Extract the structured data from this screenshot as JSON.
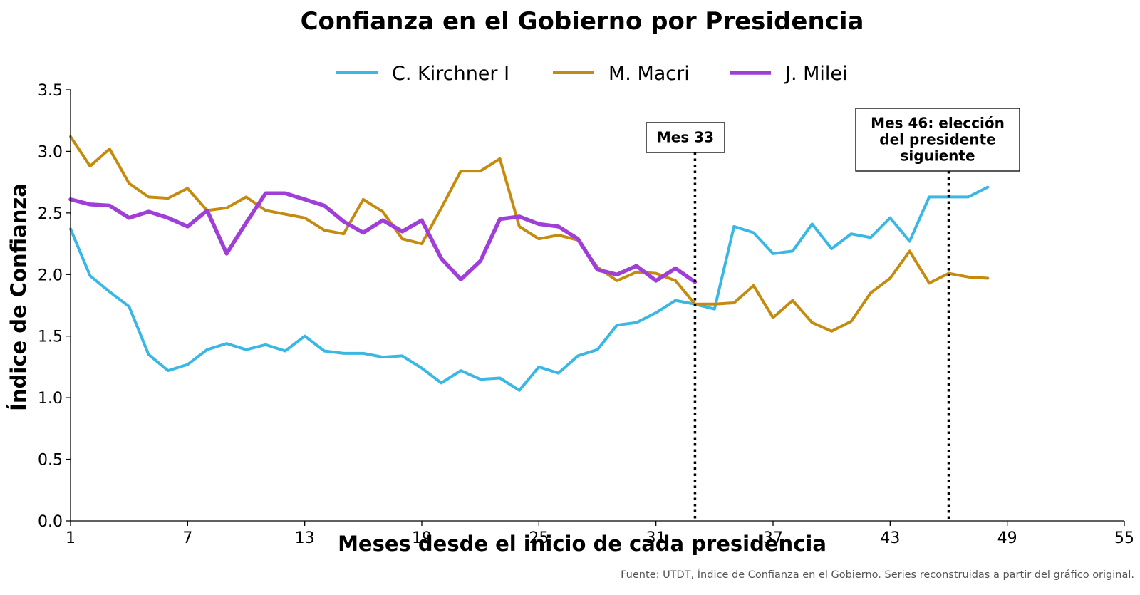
{
  "chart_data": {
    "type": "line",
    "title": "Confianza en el Gobierno por Presidencia",
    "xlabel": "Meses desde el inicio de cada presidencia",
    "ylabel": "Índice de Confianza",
    "xlim": [
      1,
      55
    ],
    "ylim": [
      0,
      3.5
    ],
    "xticks": [
      1,
      7,
      13,
      19,
      25,
      31,
      37,
      43,
      49,
      55
    ],
    "yticks": [
      0.0,
      0.5,
      1.0,
      1.5,
      2.0,
      2.5,
      3.0,
      3.5
    ],
    "xtick_labels": [
      "1",
      "7",
      "13",
      "19",
      "25",
      "31",
      "37",
      "43",
      "49",
      "55"
    ],
    "ytick_labels": [
      "0.0",
      "0.5",
      "1.0",
      "1.5",
      "2.0",
      "2.5",
      "3.0",
      "3.5"
    ],
    "grid": false,
    "legend_position": "top-center",
    "series": [
      {
        "name": "C. Kirchner I",
        "color": "#3bb7e3",
        "x": [
          1,
          2,
          3,
          4,
          5,
          6,
          7,
          8,
          9,
          10,
          11,
          12,
          13,
          14,
          15,
          16,
          17,
          18,
          19,
          20,
          21,
          22,
          23,
          24,
          25,
          26,
          27,
          28,
          29,
          30,
          31,
          32,
          33,
          34,
          35,
          36,
          37,
          38,
          39,
          40,
          41,
          42,
          43,
          44,
          45,
          46,
          47,
          48
        ],
        "values": [
          2.37,
          1.99,
          1.86,
          1.74,
          1.35,
          1.22,
          1.27,
          1.39,
          1.44,
          1.39,
          1.43,
          1.38,
          1.5,
          1.38,
          1.36,
          1.36,
          1.33,
          1.34,
          1.24,
          1.12,
          1.22,
          1.15,
          1.16,
          1.06,
          1.25,
          1.2,
          1.34,
          1.39,
          1.59,
          1.61,
          1.69,
          1.79,
          1.76,
          1.72,
          2.39,
          2.34,
          2.17,
          2.19,
          2.41,
          2.21,
          2.33,
          2.3,
          2.46,
          2.27,
          2.63,
          2.63,
          2.63,
          2.71
        ]
      },
      {
        "name": "M. Macri",
        "color": "#c48b0f",
        "x": [
          1,
          2,
          3,
          4,
          5,
          6,
          7,
          8,
          9,
          10,
          11,
          12,
          13,
          14,
          15,
          16,
          17,
          18,
          19,
          20,
          21,
          22,
          23,
          24,
          25,
          26,
          27,
          28,
          29,
          30,
          31,
          32,
          33,
          34,
          35,
          36,
          37,
          38,
          39,
          40,
          41,
          42,
          43,
          44,
          45,
          46,
          47,
          48
        ],
        "values": [
          3.12,
          2.88,
          3.02,
          2.74,
          2.63,
          2.62,
          2.7,
          2.52,
          2.54,
          2.63,
          2.52,
          2.49,
          2.46,
          2.36,
          2.33,
          2.61,
          2.51,
          2.29,
          2.25,
          2.54,
          2.84,
          2.84,
          2.94,
          2.39,
          2.29,
          2.32,
          2.28,
          2.06,
          1.95,
          2.02,
          2.01,
          1.95,
          1.76,
          1.76,
          1.77,
          1.91,
          1.65,
          1.79,
          1.61,
          1.54,
          1.62,
          1.85,
          1.97,
          2.19,
          1.93,
          2.01,
          1.98,
          1.97
        ]
      },
      {
        "name": "J. Milei",
        "color": "#a03fd8",
        "x": [
          1,
          2,
          3,
          4,
          5,
          6,
          7,
          8,
          9,
          10,
          11,
          12,
          13,
          14,
          15,
          16,
          17,
          18,
          19,
          20,
          21,
          22,
          23,
          24,
          25,
          26,
          27,
          28,
          29,
          30,
          31,
          32,
          33
        ],
        "values": [
          2.61,
          2.57,
          2.56,
          2.46,
          2.51,
          2.46,
          2.39,
          2.52,
          2.17,
          2.42,
          2.66,
          2.66,
          2.61,
          2.56,
          2.43,
          2.34,
          2.44,
          2.35,
          2.44,
          2.13,
          1.96,
          2.11,
          2.45,
          2.47,
          2.41,
          2.39,
          2.29,
          2.04,
          2.0,
          2.07,
          1.95,
          2.05,
          1.94
        ]
      }
    ],
    "annotations": [
      {
        "x": 33,
        "lines": [
          "Mes 33"
        ]
      },
      {
        "x": 46,
        "lines": [
          "Mes 46: elección",
          "del presidente",
          "siguiente"
        ]
      }
    ],
    "source": "Fuente: UTDT, Índice de Confianza en el Gobierno. Series reconstruidas a partir del gráfico original."
  }
}
